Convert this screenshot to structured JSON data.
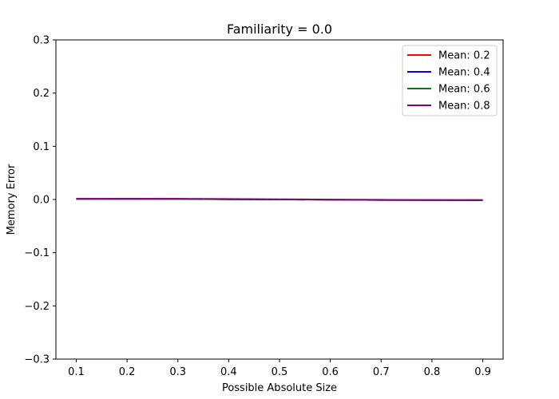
{
  "chart_data": {
    "type": "line",
    "title": "Familiarity = 0.0",
    "xlabel": "Possible Absolute Size",
    "ylabel": "Memory Error",
    "xlim": [
      0.06,
      0.94
    ],
    "ylim": [
      -0.3,
      0.3
    ],
    "x_ticks": [
      "0.1",
      "0.2",
      "0.3",
      "0.4",
      "0.5",
      "0.6",
      "0.7",
      "0.8",
      "0.9"
    ],
    "y_ticks": [
      "−0.3",
      "−0.2",
      "−0.1",
      "0.0",
      "0.1",
      "0.2",
      "0.3"
    ],
    "grid": false,
    "legend_position": "top-right",
    "x": [
      0.1,
      0.2,
      0.3,
      0.4,
      0.5,
      0.6,
      0.7,
      0.8,
      0.9
    ],
    "series": [
      {
        "name": "Mean: 0.2",
        "color": "#ff0000",
        "values": [
          0.001,
          0.001,
          0.001,
          0.0,
          0.0,
          -0.0005,
          -0.001,
          -0.001,
          -0.001
        ]
      },
      {
        "name": "Mean: 0.4",
        "color": "#0000ff",
        "values": [
          0.001,
          0.001,
          0.001,
          0.0005,
          0.0,
          -0.0005,
          -0.001,
          -0.001,
          -0.001
        ]
      },
      {
        "name": "Mean: 0.6",
        "color": "#008000",
        "values": [
          0.001,
          0.0015,
          0.001,
          0.0005,
          0.0,
          -0.0005,
          -0.001,
          -0.0015,
          -0.0015
        ]
      },
      {
        "name": "Mean: 0.8",
        "color": "#800080",
        "values": [
          0.0015,
          0.0015,
          0.0015,
          0.001,
          0.0005,
          0.0,
          -0.0005,
          -0.001,
          -0.0015
        ]
      }
    ]
  }
}
